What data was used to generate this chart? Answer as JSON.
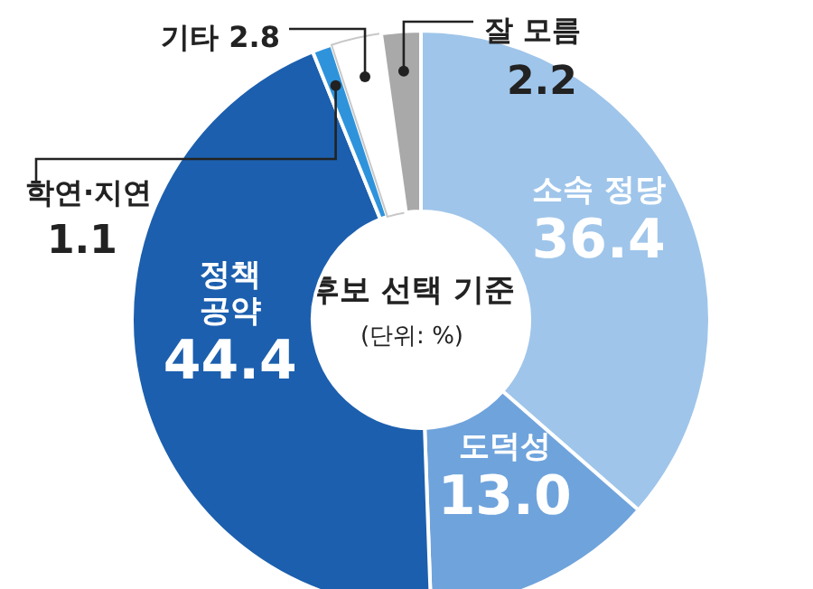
{
  "chart_data": {
    "type": "donut",
    "title": "후보 선택 기준",
    "subtitle": "(단위: %)",
    "categories": [
      "소속 정당",
      "도덕성",
      "정책 공약",
      "학연·지연",
      "기타",
      "잘 모름"
    ],
    "values": [
      36.4,
      13.0,
      44.4,
      1.1,
      2.8,
      2.2
    ],
    "value_labels": [
      "36.4",
      "13.0",
      "44.4",
      "1.1",
      "2.8",
      "2.2"
    ],
    "colors": [
      "#9fc5ea",
      "#6fa3dc",
      "#1c5fae",
      "#2f93dc",
      "#ffffff",
      "#a9a9a9"
    ]
  }
}
